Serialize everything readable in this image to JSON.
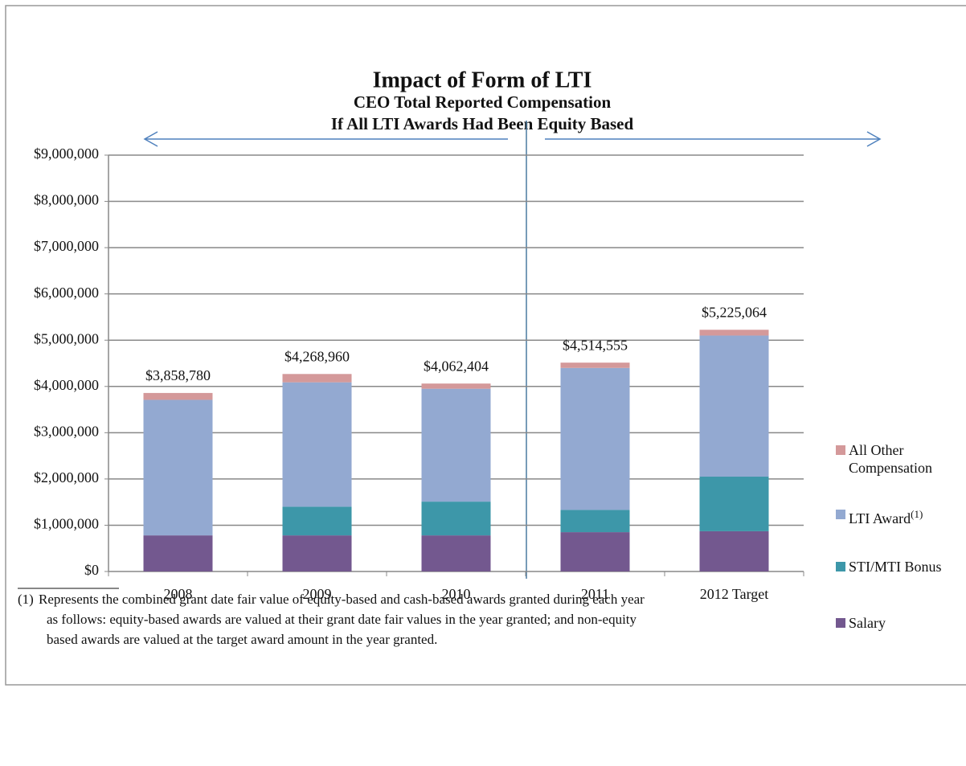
{
  "chart_data": {
    "type": "stacked_bar",
    "title": "Impact of Form of LTI",
    "subtitle": [
      "CEO Total Reported Compensation",
      "If All LTI Awards Had Been Equity Based"
    ],
    "categories": [
      "2008",
      "2009",
      "2010",
      "2011",
      "2012 Target"
    ],
    "series": [
      {
        "name": "Salary",
        "color": "#73588f",
        "values": [
          780000,
          780000,
          780000,
          850000,
          870000
        ]
      },
      {
        "name": "STI/MTI Bonus",
        "color": "#3d97a9",
        "values": [
          0,
          620000,
          730000,
          480000,
          1180000
        ]
      },
      {
        "name": "LTI Award",
        "name_note": "(1)",
        "color": "#93a9d1",
        "values": [
          2930000,
          2688960,
          2440000,
          3070000,
          3050000
        ]
      },
      {
        "name": "All Other Compensation",
        "color": "#d4999a",
        "values": [
          148780,
          180000,
          112404,
          114555,
          125064
        ]
      }
    ],
    "totals": [
      3858780,
      4268960,
      4062404,
      4514555,
      5225064
    ],
    "total_labels": [
      "$3,858,780",
      "$4,268,960",
      "$4,062,404",
      "$4,514,555",
      "$5,225,064"
    ],
    "ylim": [
      0,
      9000000
    ],
    "yticks": [
      {
        "value": 0,
        "label": "$0"
      },
      {
        "value": 1000000,
        "label": "$1,000,000"
      },
      {
        "value": 2000000,
        "label": "$2,000,000"
      },
      {
        "value": 3000000,
        "label": "$3,000,000"
      },
      {
        "value": 4000000,
        "label": "$4,000,000"
      },
      {
        "value": 5000000,
        "label": "$5,000,000"
      },
      {
        "value": 6000000,
        "label": "$6,000,000"
      },
      {
        "value": 7000000,
        "label": "$7,000,000"
      },
      {
        "value": 8000000,
        "label": "$8,000,000"
      },
      {
        "value": 9000000,
        "label": "$9,000,000"
      }
    ],
    "grid": true,
    "legend": "right",
    "footnote": {
      "marker": "(1)",
      "lines": [
        "Represents the combined grant date fair value of equity-based and cash-based awards granted during each year",
        "as follows: equity-based awards are valued at their grant date fair values in the year granted; and non-equity",
        "based awards are valued at the target award amount in the year granted."
      ]
    }
  }
}
